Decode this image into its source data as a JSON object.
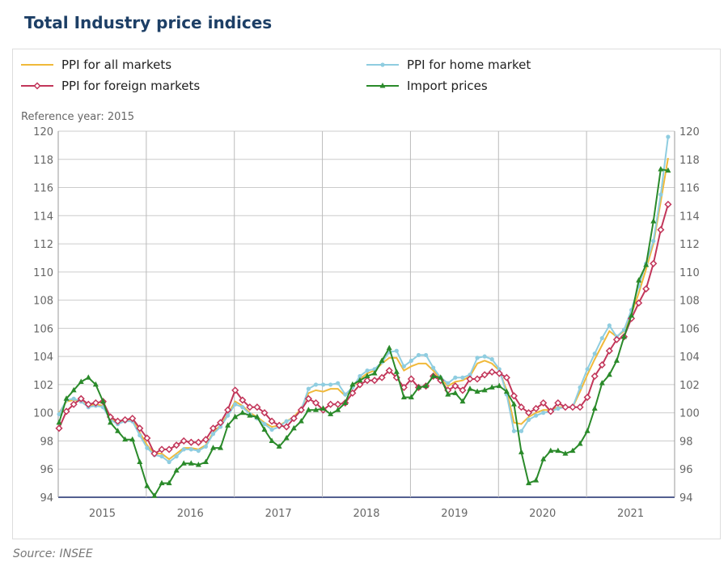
{
  "title": "Total Industry price indices",
  "source": "Source: INSEE",
  "chart_data": {
    "type": "line",
    "title": "Total Industry price indices",
    "subtitle": "Reference year: 2015",
    "x_start": "2015-01",
    "x_end": "2021-12",
    "frequency": "monthly",
    "year_labels": [
      "2015",
      "2016",
      "2017",
      "2018",
      "2019",
      "2020",
      "2021"
    ],
    "ylim": [
      94,
      120
    ],
    "yticks": [
      94,
      96,
      98,
      100,
      102,
      104,
      106,
      108,
      110,
      112,
      114,
      116,
      118,
      120
    ],
    "dual_y_axis": true,
    "grid": true,
    "legend_position": "top",
    "series": [
      {
        "name": "PPI for all markets",
        "color": "#f0b93a",
        "marker": "none",
        "values": [
          100,
          100.8,
          100.9,
          100.8,
          100.5,
          100.6,
          100.5,
          99.6,
          99.3,
          99.5,
          99.5,
          98.6,
          97.7,
          97.1,
          97.1,
          96.7,
          97.1,
          97.5,
          97.5,
          97.4,
          97.7,
          98.6,
          99.1,
          99.9,
          100.8,
          100.5,
          100.0,
          99.7,
          99.3,
          99.0,
          99.1,
          99.4,
          99.7,
          100.3,
          101.4,
          101.6,
          101.5,
          101.7,
          101.7,
          101.2,
          101.8,
          102.4,
          102.8,
          103.0,
          103.5,
          103.9,
          103.9,
          103.0,
          103.3,
          103.5,
          103.5,
          103.0,
          102.4,
          101.9,
          102.2,
          102.3,
          102.6,
          103.5,
          103.7,
          103.5,
          103.0,
          101.6,
          99.3,
          99.2,
          99.7,
          100.0,
          100.2,
          100.2,
          100.4,
          100.4,
          100.4,
          101.5,
          102.7,
          103.8,
          104.8,
          105.8,
          105.4,
          105.8,
          107.0,
          108.5,
          110.2,
          112.0,
          115.0,
          118.1
        ]
      },
      {
        "name": "PPI for home market",
        "color": "#8fcde0",
        "marker": "circle",
        "values": [
          99.9,
          100.9,
          101.0,
          100.8,
          100.4,
          100.5,
          100.4,
          99.5,
          99.2,
          99.4,
          99.4,
          98.4,
          97.5,
          97.0,
          96.9,
          96.5,
          96.9,
          97.4,
          97.4,
          97.3,
          97.6,
          98.5,
          99.0,
          99.8,
          100.6,
          100.4,
          99.9,
          99.6,
          99.2,
          98.8,
          99.0,
          99.4,
          99.6,
          100.2,
          101.7,
          102.0,
          102.0,
          102.0,
          102.1,
          101.3,
          101.8,
          102.6,
          103.0,
          103.1,
          103.6,
          104.3,
          104.4,
          103.3,
          103.7,
          104.1,
          104.1,
          103.2,
          102.5,
          102.1,
          102.5,
          102.5,
          102.7,
          103.9,
          104.0,
          103.8,
          103.1,
          101.3,
          98.7,
          98.7,
          99.5,
          99.8,
          100.0,
          100.1,
          100.3,
          100.4,
          100.4,
          101.8,
          103.1,
          104.2,
          105.3,
          106.2,
          105.4,
          105.9,
          107.3,
          109.0,
          110.6,
          112.2,
          115.5,
          119.6
        ]
      },
      {
        "name": "PPI for foreign markets",
        "color": "#c2365a",
        "marker": "diamond",
        "values": [
          98.9,
          100.1,
          100.6,
          101.0,
          100.6,
          100.7,
          100.8,
          99.7,
          99.4,
          99.5,
          99.6,
          98.9,
          98.2,
          97.1,
          97.4,
          97.4,
          97.7,
          98.0,
          97.9,
          97.9,
          98.1,
          98.9,
          99.3,
          100.2,
          101.6,
          100.9,
          100.4,
          100.4,
          100.0,
          99.4,
          99.1,
          99.0,
          99.6,
          100.2,
          101.0,
          100.7,
          100.2,
          100.6,
          100.6,
          100.7,
          101.4,
          102.0,
          102.3,
          102.3,
          102.5,
          103.0,
          102.5,
          101.8,
          102.4,
          101.8,
          101.9,
          102.6,
          102.3,
          101.6,
          101.9,
          101.6,
          102.4,
          102.4,
          102.7,
          102.9,
          102.8,
          102.5,
          101.2,
          100.4,
          100.0,
          100.3,
          100.7,
          100.1,
          100.7,
          100.4,
          100.4,
          100.4,
          101.1,
          102.6,
          103.4,
          104.4,
          105.2,
          105.4,
          106.7,
          107.8,
          108.8,
          110.6,
          113.0,
          114.8
        ]
      },
      {
        "name": "Import prices",
        "color": "#2a8a2a",
        "marker": "triangle",
        "values": [
          99.3,
          101.0,
          101.6,
          102.2,
          102.5,
          102.0,
          100.8,
          99.3,
          98.7,
          98.1,
          98.1,
          96.5,
          94.8,
          94.1,
          95.0,
          95.0,
          95.9,
          96.4,
          96.4,
          96.3,
          96.5,
          97.5,
          97.5,
          99.1,
          99.7,
          100.0,
          99.8,
          99.7,
          98.8,
          98.0,
          97.6,
          98.2,
          98.9,
          99.4,
          100.2,
          100.2,
          100.3,
          99.9,
          100.2,
          100.7,
          102.0,
          102.3,
          102.6,
          102.8,
          103.7,
          104.6,
          102.9,
          101.1,
          101.1,
          101.8,
          101.9,
          102.6,
          102.5,
          101.3,
          101.4,
          100.8,
          101.7,
          101.5,
          101.6,
          101.8,
          101.9,
          101.5,
          100.6,
          97.2,
          95.0,
          95.2,
          96.7,
          97.3,
          97.3,
          97.1,
          97.3,
          97.8,
          98.7,
          100.3,
          102.1,
          102.7,
          103.7,
          105.4,
          106.9,
          109.4,
          110.5,
          113.6,
          117.3,
          117.2
        ]
      }
    ]
  }
}
